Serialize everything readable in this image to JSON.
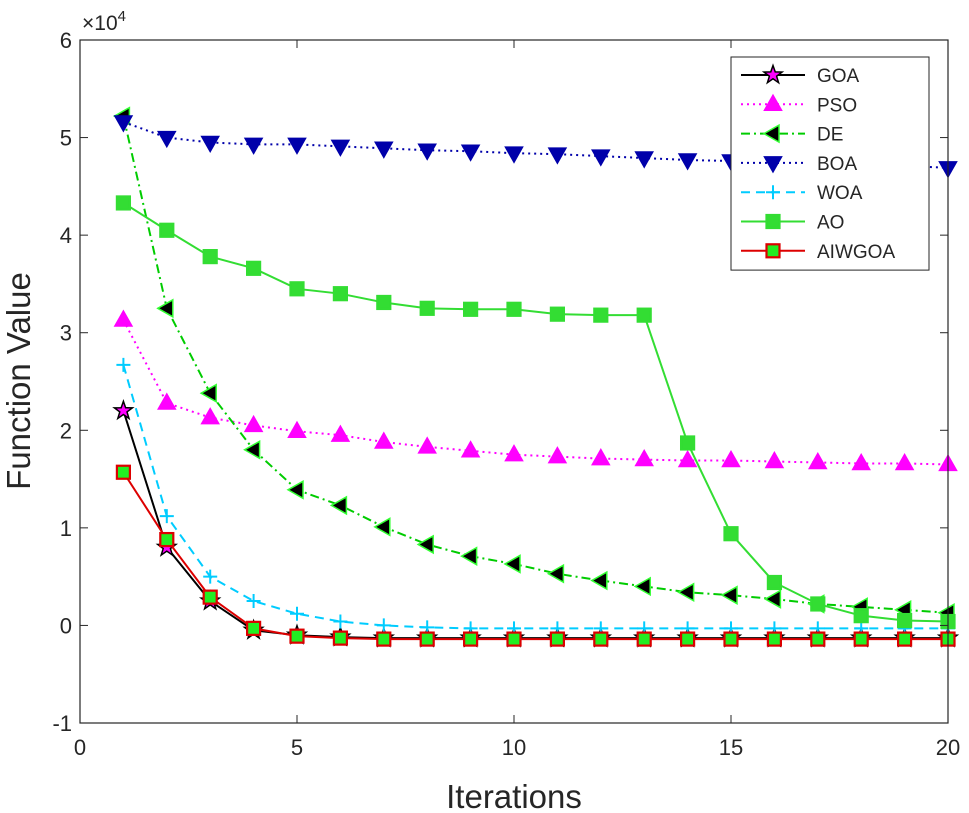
{
  "chart_data": {
    "type": "line",
    "xlabel": "Iterations",
    "ylabel": "Function Value",
    "exponent_label": "×10",
    "exponent_power": "4",
    "xlim": [
      0,
      20
    ],
    "ylim": [
      -1,
      6
    ],
    "xticks": [
      0,
      5,
      10,
      15,
      20
    ],
    "yticks": [
      -1,
      0,
      1,
      2,
      3,
      4,
      5,
      6
    ],
    "x": [
      1,
      2,
      3,
      4,
      5,
      6,
      7,
      8,
      9,
      10,
      11,
      12,
      13,
      14,
      15,
      16,
      17,
      18,
      19,
      20
    ],
    "legend_position": "top-right",
    "series": [
      {
        "name": "GOA",
        "color": "#000000",
        "dash": "solid",
        "marker": "star",
        "marker_fill": "#ff00ff",
        "values": [
          2.2,
          0.8,
          0.25,
          -0.05,
          -0.1,
          -0.12,
          -0.13,
          -0.13,
          -0.13,
          -0.13,
          -0.13,
          -0.13,
          -0.13,
          -0.13,
          -0.13,
          -0.13,
          -0.13,
          -0.13,
          -0.13,
          -0.13
        ]
      },
      {
        "name": "PSO",
        "color": "#ff00ff",
        "dash": "dot",
        "marker": "triangle-up",
        "marker_fill": "#ff00ff",
        "values": [
          3.13,
          2.28,
          2.13,
          2.05,
          1.99,
          1.95,
          1.88,
          1.83,
          1.79,
          1.75,
          1.73,
          1.71,
          1.7,
          1.69,
          1.69,
          1.68,
          1.67,
          1.66,
          1.66,
          1.65
        ]
      },
      {
        "name": "DE",
        "color": "#00cc00",
        "dash": "dashdot",
        "marker": "triangle-left",
        "marker_fill": "#000000",
        "values": [
          5.22,
          3.25,
          2.38,
          1.8,
          1.39,
          1.23,
          1.01,
          0.83,
          0.71,
          0.63,
          0.53,
          0.46,
          0.4,
          0.34,
          0.31,
          0.27,
          0.22,
          0.19,
          0.16,
          0.13
        ]
      },
      {
        "name": "BOA",
        "color": "#0000aa",
        "dash": "dot",
        "marker": "triangle-down",
        "marker_fill": "#0000aa",
        "values": [
          5.16,
          5.0,
          4.95,
          4.93,
          4.93,
          4.91,
          4.89,
          4.87,
          4.86,
          4.84,
          4.83,
          4.81,
          4.79,
          4.77,
          4.76,
          4.74,
          4.73,
          4.72,
          4.71,
          4.69
        ]
      },
      {
        "name": "WOA",
        "color": "#00ccff",
        "dash": "dash",
        "marker": "plus",
        "marker_fill": "#00ccff",
        "values": [
          2.67,
          1.12,
          0.5,
          0.25,
          0.12,
          0.04,
          0.0,
          -0.02,
          -0.03,
          -0.03,
          -0.03,
          -0.03,
          -0.03,
          -0.03,
          -0.03,
          -0.03,
          -0.03,
          -0.03,
          -0.03,
          -0.03
        ]
      },
      {
        "name": "AO",
        "color": "#33dd33",
        "dash": "solid",
        "marker": "square",
        "marker_fill": "#33dd33",
        "values": [
          4.33,
          4.05,
          3.78,
          3.66,
          3.45,
          3.4,
          3.31,
          3.25,
          3.24,
          3.24,
          3.19,
          3.18,
          3.18,
          1.87,
          0.94,
          0.44,
          0.22,
          0.1,
          0.05,
          0.04
        ]
      },
      {
        "name": "AIWGOA",
        "color": "#dd0000",
        "dash": "solid",
        "marker": "square",
        "marker_fill": "#22ee22",
        "values": [
          1.57,
          0.88,
          0.29,
          -0.03,
          -0.11,
          -0.13,
          -0.14,
          -0.14,
          -0.14,
          -0.14,
          -0.14,
          -0.14,
          -0.14,
          -0.14,
          -0.14,
          -0.14,
          -0.14,
          -0.14,
          -0.14,
          -0.14
        ]
      }
    ]
  }
}
